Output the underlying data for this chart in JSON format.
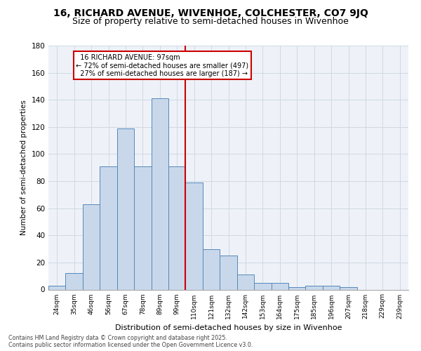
{
  "title_line1": "16, RICHARD AVENUE, WIVENHOE, COLCHESTER, CO7 9JQ",
  "title_line2": "Size of property relative to semi-detached houses in Wivenhoe",
  "xlabel": "Distribution of semi-detached houses by size in Wivenhoe",
  "ylabel": "Number of semi-detached properties",
  "categories": [
    "24sqm",
    "35sqm",
    "46sqm",
    "56sqm",
    "67sqm",
    "78sqm",
    "89sqm",
    "99sqm",
    "110sqm",
    "121sqm",
    "132sqm",
    "142sqm",
    "153sqm",
    "164sqm",
    "175sqm",
    "185sqm",
    "196sqm",
    "207sqm",
    "218sqm",
    "229sqm",
    "239sqm"
  ],
  "values": [
    3,
    12,
    63,
    91,
    119,
    91,
    141,
    91,
    79,
    30,
    25,
    11,
    5,
    5,
    2,
    3,
    3,
    2,
    0,
    0,
    0
  ],
  "property_label": "16 RICHARD AVENUE: 97sqm",
  "pct_smaller": 72,
  "count_smaller": 497,
  "pct_larger": 27,
  "count_larger": 187,
  "bar_color": "#c8d8ea",
  "bar_edge_color": "#5588bb",
  "vline_color": "#cc0000",
  "vline_x_index": 7,
  "annotation_box_color": "#cc0000",
  "plot_bg_color": "#eef2f8",
  "grid_color": "#d0d8e4",
  "footer_line1": "Contains HM Land Registry data © Crown copyright and database right 2025.",
  "footer_line2": "Contains public sector information licensed under the Open Government Licence v3.0.",
  "ylim": [
    0,
    180
  ],
  "yticks": [
    0,
    20,
    40,
    60,
    80,
    100,
    120,
    140,
    160,
    180
  ],
  "title1_fontsize": 10,
  "title2_fontsize": 9
}
